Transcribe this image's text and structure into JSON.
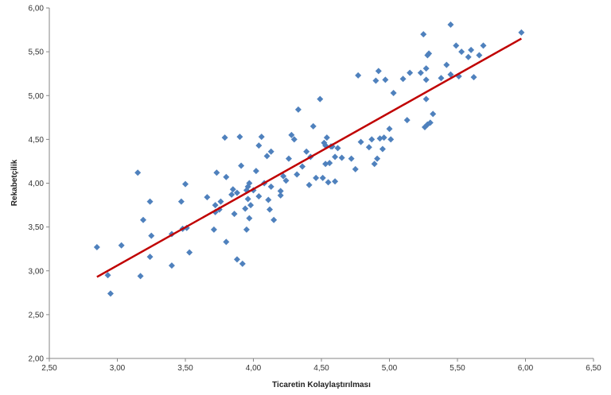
{
  "chart_data": {
    "type": "scatter",
    "title": "",
    "xlabel": "Ticaretin Kolaylaştırılması",
    "ylabel": "Rekabetçilik",
    "xlim": [
      2.5,
      6.5
    ],
    "ylim": [
      2.0,
      6.0
    ],
    "x_ticks": [
      "2,50",
      "3,00",
      "3,50",
      "4,00",
      "4,50",
      "5,00",
      "5,50",
      "6,00",
      "6,50"
    ],
    "y_ticks": [
      "2,00",
      "2,50",
      "3,00",
      "3,50",
      "4,00",
      "4,50",
      "5,00",
      "5,50",
      "6,00"
    ],
    "grid": false,
    "legend": "none",
    "marker_color": "#4F81BD",
    "trendline_color": "#C00000",
    "trendline": {
      "x": [
        2.85,
        5.97
      ],
      "y": [
        2.93,
        5.65
      ]
    },
    "points": [
      [
        2.85,
        3.27
      ],
      [
        2.93,
        2.95
      ],
      [
        2.95,
        2.74
      ],
      [
        3.03,
        3.29
      ],
      [
        3.15,
        4.12
      ],
      [
        3.17,
        2.94
      ],
      [
        3.19,
        3.58
      ],
      [
        3.24,
        3.79
      ],
      [
        3.24,
        3.16
      ],
      [
        3.25,
        3.4
      ],
      [
        3.4,
        3.06
      ],
      [
        3.4,
        3.42
      ],
      [
        3.47,
        3.79
      ],
      [
        3.48,
        3.48
      ],
      [
        3.5,
        3.99
      ],
      [
        3.51,
        3.49
      ],
      [
        3.53,
        3.21
      ],
      [
        3.66,
        3.84
      ],
      [
        3.71,
        3.47
      ],
      [
        3.72,
        3.75
      ],
      [
        3.72,
        3.67
      ],
      [
        3.73,
        4.12
      ],
      [
        3.75,
        3.7
      ],
      [
        3.76,
        3.79
      ],
      [
        3.79,
        4.52
      ],
      [
        3.8,
        3.33
      ],
      [
        3.8,
        4.07
      ],
      [
        3.84,
        3.87
      ],
      [
        3.85,
        3.93
      ],
      [
        3.86,
        3.65
      ],
      [
        3.88,
        3.89
      ],
      [
        3.88,
        3.13
      ],
      [
        3.9,
        4.53
      ],
      [
        3.91,
        4.2
      ],
      [
        3.92,
        3.08
      ],
      [
        3.94,
        3.71
      ],
      [
        3.95,
        3.92
      ],
      [
        3.95,
        3.47
      ],
      [
        3.96,
        3.96
      ],
      [
        3.96,
        3.82
      ],
      [
        3.97,
        4.0
      ],
      [
        3.97,
        3.6
      ],
      [
        3.98,
        3.75
      ],
      [
        4.0,
        3.92
      ],
      [
        4.02,
        4.14
      ],
      [
        4.04,
        3.85
      ],
      [
        4.04,
        4.43
      ],
      [
        4.06,
        4.53
      ],
      [
        4.08,
        4.0
      ],
      [
        4.1,
        4.31
      ],
      [
        4.11,
        3.81
      ],
      [
        4.12,
        3.7
      ],
      [
        4.13,
        3.96
      ],
      [
        4.13,
        4.36
      ],
      [
        4.15,
        3.58
      ],
      [
        4.2,
        3.91
      ],
      [
        4.2,
        3.86
      ],
      [
        4.22,
        4.08
      ],
      [
        4.24,
        4.03
      ],
      [
        4.26,
        4.28
      ],
      [
        4.28,
        4.55
      ],
      [
        4.3,
        4.5
      ],
      [
        4.32,
        4.1
      ],
      [
        4.33,
        4.84
      ],
      [
        4.36,
        4.19
      ],
      [
        4.39,
        4.36
      ],
      [
        4.41,
        3.98
      ],
      [
        4.42,
        4.3
      ],
      [
        4.44,
        4.65
      ],
      [
        4.46,
        4.06
      ],
      [
        4.49,
        4.96
      ],
      [
        4.51,
        4.06
      ],
      [
        4.52,
        4.46
      ],
      [
        4.53,
        4.22
      ],
      [
        4.53,
        4.43
      ],
      [
        4.54,
        4.52
      ],
      [
        4.55,
        4.01
      ],
      [
        4.56,
        4.23
      ],
      [
        4.57,
        4.42
      ],
      [
        4.58,
        4.42
      ],
      [
        4.6,
        4.02
      ],
      [
        4.6,
        4.3
      ],
      [
        4.62,
        4.4
      ],
      [
        4.65,
        4.29
      ],
      [
        4.72,
        4.28
      ],
      [
        4.75,
        4.16
      ],
      [
        4.77,
        5.23
      ],
      [
        4.79,
        4.47
      ],
      [
        4.85,
        4.41
      ],
      [
        4.87,
        4.5
      ],
      [
        4.89,
        4.22
      ],
      [
        4.9,
        5.17
      ],
      [
        4.91,
        4.28
      ],
      [
        4.92,
        5.28
      ],
      [
        4.93,
        4.51
      ],
      [
        4.95,
        4.39
      ],
      [
        4.96,
        4.52
      ],
      [
        4.97,
        5.18
      ],
      [
        5.0,
        4.62
      ],
      [
        5.01,
        4.5
      ],
      [
        5.03,
        5.03
      ],
      [
        5.1,
        5.19
      ],
      [
        5.13,
        4.72
      ],
      [
        5.15,
        5.26
      ],
      [
        5.23,
        5.26
      ],
      [
        5.25,
        5.7
      ],
      [
        5.26,
        4.64
      ],
      [
        5.27,
        5.31
      ],
      [
        5.27,
        5.18
      ],
      [
        5.27,
        4.96
      ],
      [
        5.28,
        5.46
      ],
      [
        5.28,
        4.67
      ],
      [
        5.29,
        5.48
      ],
      [
        5.3,
        4.69
      ],
      [
        5.32,
        4.79
      ],
      [
        5.38,
        5.2
      ],
      [
        5.42,
        5.35
      ],
      [
        5.45,
        5.81
      ],
      [
        5.45,
        5.24
      ],
      [
        5.49,
        5.57
      ],
      [
        5.51,
        5.22
      ],
      [
        5.53,
        5.5
      ],
      [
        5.58,
        5.44
      ],
      [
        5.6,
        5.52
      ],
      [
        5.62,
        5.21
      ],
      [
        5.66,
        5.46
      ],
      [
        5.69,
        5.57
      ],
      [
        5.97,
        5.72
      ]
    ]
  }
}
